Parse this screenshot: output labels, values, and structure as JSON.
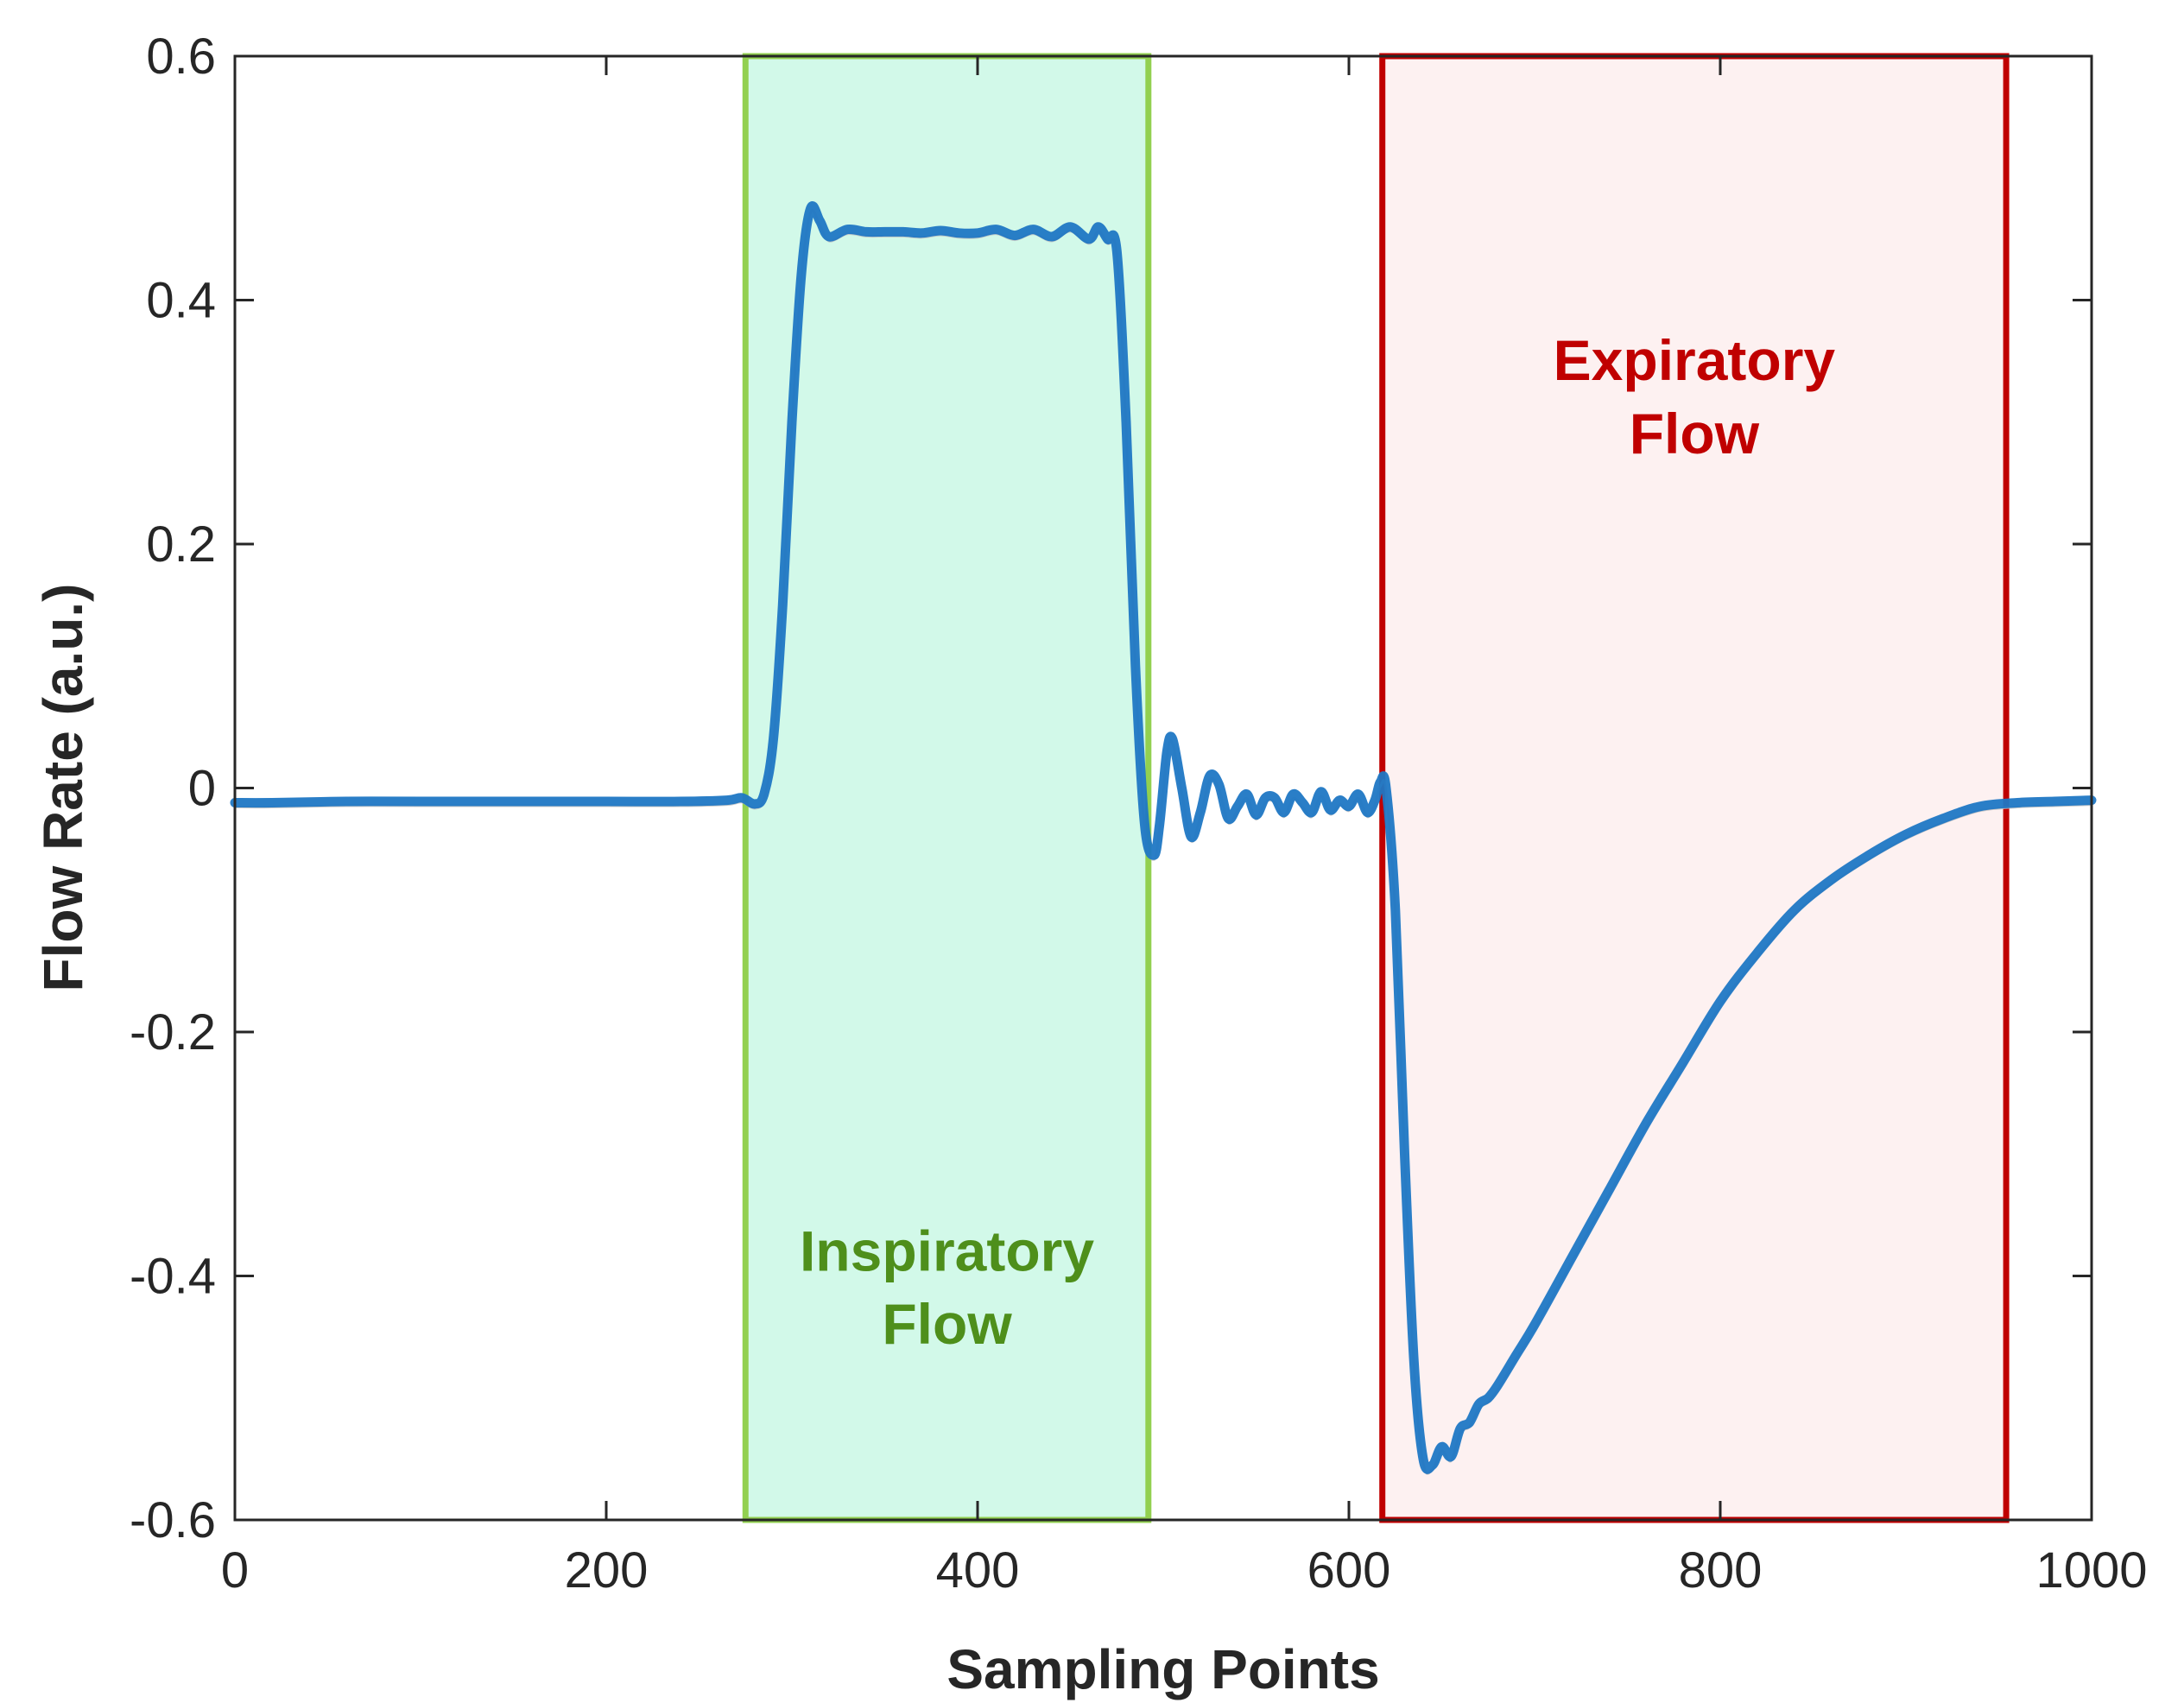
{
  "chart_data": {
    "type": "line",
    "title": "",
    "xlabel": "Sampling Points",
    "ylabel": "Flow Rate (a.u.)",
    "xlim": [
      0,
      1000
    ],
    "ylim": [
      -0.6,
      0.6
    ],
    "xticks": [
      0,
      200,
      400,
      600,
      800,
      1000
    ],
    "xtick_labels": [
      "0",
      "200",
      "400",
      "600",
      "800",
      "1000"
    ],
    "yticks": [
      0.6,
      0.4,
      0.2,
      0,
      -0.2,
      -0.4,
      -0.6
    ],
    "ytick_labels": [
      "0.6",
      "0.4",
      "0.2",
      "0",
      "-0.2",
      "-0.4",
      "-0.6"
    ],
    "grid": false,
    "regions": [
      {
        "label_line1": "Inspiratory",
        "label_line2": "Flow",
        "x_start": 275,
        "x_end": 492,
        "fill": "#d2f9e9",
        "stroke": "#92d050",
        "text_color": "#4e8f1b",
        "label_y": [
          -0.38,
          -0.44
        ]
      },
      {
        "label_line1": "Expiratory",
        "label_line2": "Flow",
        "x_start": 618,
        "x_end": 954,
        "fill": "#fdf1f1",
        "stroke": "#c00000",
        "text_color": "#c00000",
        "label_y": [
          0.35,
          0.29
        ]
      }
    ],
    "series": [
      {
        "color": "#1f77c4",
        "x": [
          0,
          20,
          60,
          100,
          150,
          200,
          240,
          265,
          273,
          280,
          285,
          290,
          295,
          300,
          305,
          310,
          315,
          320,
          330,
          340,
          350,
          360,
          370,
          380,
          390,
          400,
          410,
          420,
          430,
          440,
          450,
          460,
          465,
          470,
          475,
          480,
          485,
          490,
          495,
          498,
          502,
          505,
          510,
          515,
          520,
          525,
          530,
          535,
          540,
          545,
          550,
          555,
          560,
          565,
          570,
          575,
          580,
          585,
          590,
          595,
          600,
          605,
          610,
          614,
          617,
          620,
          625,
          630,
          635,
          640,
          645,
          650,
          655,
          660,
          665,
          670,
          675,
          680,
          690,
          700,
          720,
          740,
          760,
          780,
          800,
          820,
          840,
          860,
          880,
          900,
          920,
          940,
          960,
          980,
          1000
        ],
        "y": [
          -0.012,
          -0.012,
          -0.011,
          -0.011,
          -0.011,
          -0.011,
          -0.011,
          -0.01,
          -0.008,
          -0.013,
          -0.005,
          0.04,
          0.15,
          0.3,
          0.42,
          0.475,
          0.465,
          0.452,
          0.458,
          0.456,
          0.456,
          0.456,
          0.455,
          0.457,
          0.455,
          0.455,
          0.458,
          0.453,
          0.458,
          0.452,
          0.46,
          0.45,
          0.46,
          0.45,
          0.44,
          0.3,
          0.1,
          -0.03,
          -0.055,
          -0.03,
          0.03,
          0.04,
          0.0,
          -0.04,
          -0.02,
          0.01,
          0.003,
          -0.025,
          -0.015,
          -0.005,
          -0.022,
          -0.008,
          -0.008,
          -0.02,
          -0.005,
          -0.012,
          -0.02,
          -0.003,
          -0.018,
          -0.01,
          -0.015,
          -0.005,
          -0.02,
          -0.01,
          0.005,
          0.0,
          -0.1,
          -0.3,
          -0.47,
          -0.55,
          -0.555,
          -0.54,
          -0.548,
          -0.525,
          -0.52,
          -0.505,
          -0.5,
          -0.49,
          -0.465,
          -0.44,
          -0.385,
          -0.33,
          -0.275,
          -0.225,
          -0.175,
          -0.135,
          -0.1,
          -0.075,
          -0.055,
          -0.038,
          -0.025,
          -0.015,
          -0.012,
          -0.011,
          -0.01
        ]
      }
    ]
  }
}
